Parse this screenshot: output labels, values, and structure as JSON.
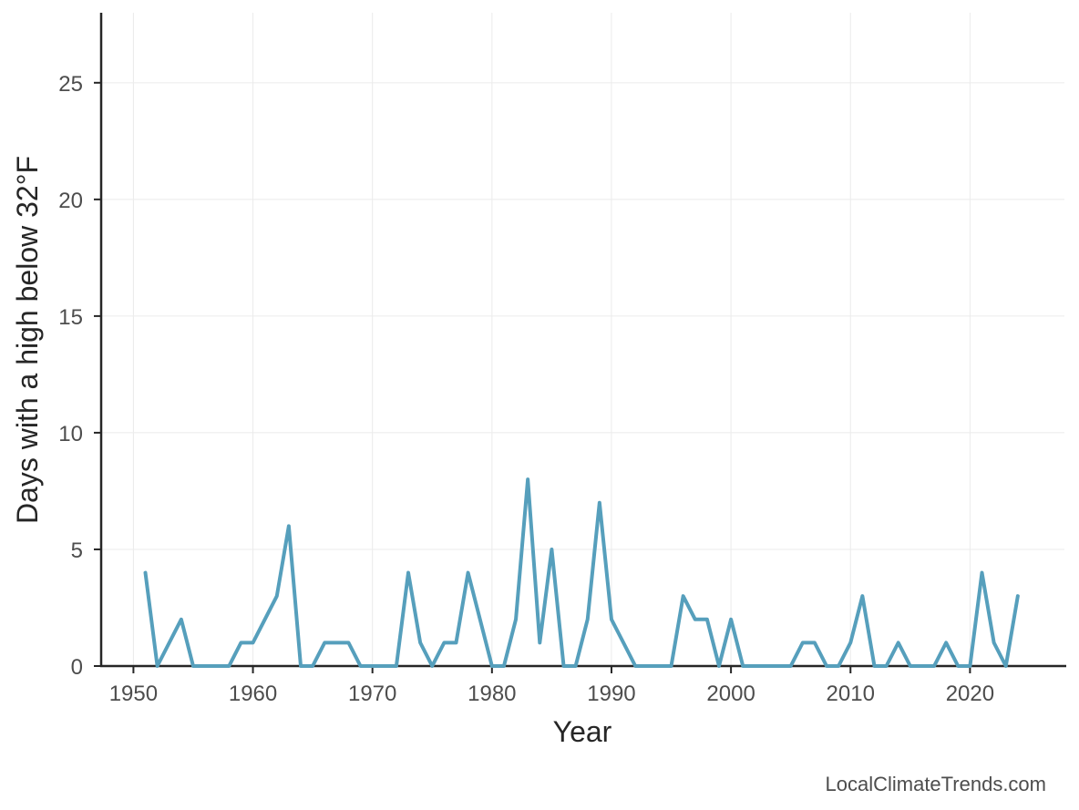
{
  "chart_data": {
    "type": "line",
    "xlabel": "Year",
    "ylabel": "Days with a high below 32°F",
    "xlim": [
      1947.3,
      1927.9
    ],
    "ylim": [
      0,
      28
    ],
    "x_ticks": [
      1950,
      1960,
      1970,
      1980,
      1990,
      2000,
      2010,
      2020
    ],
    "y_ticks": [
      0,
      5,
      10,
      15,
      20,
      25
    ],
    "grid": true,
    "line_color": "#569fbc",
    "series": [
      {
        "x": [
          1951,
          1952,
          1953,
          1954,
          1955,
          1956,
          1957,
          1958,
          1959,
          1960,
          1961,
          1962,
          1963,
          1964,
          1965,
          1966,
          1967,
          1968,
          1969,
          1970,
          1971,
          1972,
          1973,
          1974,
          1975,
          1976,
          1977,
          1978,
          1979,
          1980,
          1981,
          1982,
          1983,
          1984,
          1985,
          1986,
          1987,
          1988,
          1989,
          1990,
          1991,
          1992,
          1993,
          1994,
          1995,
          1996,
          1997,
          1998,
          1999,
          2000,
          2001,
          2002,
          2003,
          2004,
          2005,
          2006,
          2007,
          2008,
          2009,
          2010,
          2011,
          2012,
          2013,
          2014,
          2015,
          2016,
          2017,
          2018,
          2019,
          2020,
          2021,
          2022,
          2023,
          2024
        ],
        "values": [
          4,
          0,
          1,
          2,
          0,
          0,
          0,
          0,
          1,
          1,
          2,
          3,
          6,
          0,
          0,
          1,
          1,
          1,
          0,
          0,
          0,
          0,
          4,
          1,
          0,
          1,
          1,
          4,
          2,
          0,
          0,
          2,
          8,
          1,
          5,
          0,
          0,
          2,
          7,
          2,
          1,
          0,
          0,
          0,
          0,
          3,
          2,
          2,
          0,
          2,
          0,
          0,
          0,
          0,
          0,
          1,
          1,
          0,
          0,
          1,
          3,
          0,
          0,
          1,
          0,
          0,
          0,
          1,
          0,
          0,
          4,
          1,
          0,
          3
        ]
      }
    ]
  },
  "credit": "LocalClimateTrends.com"
}
